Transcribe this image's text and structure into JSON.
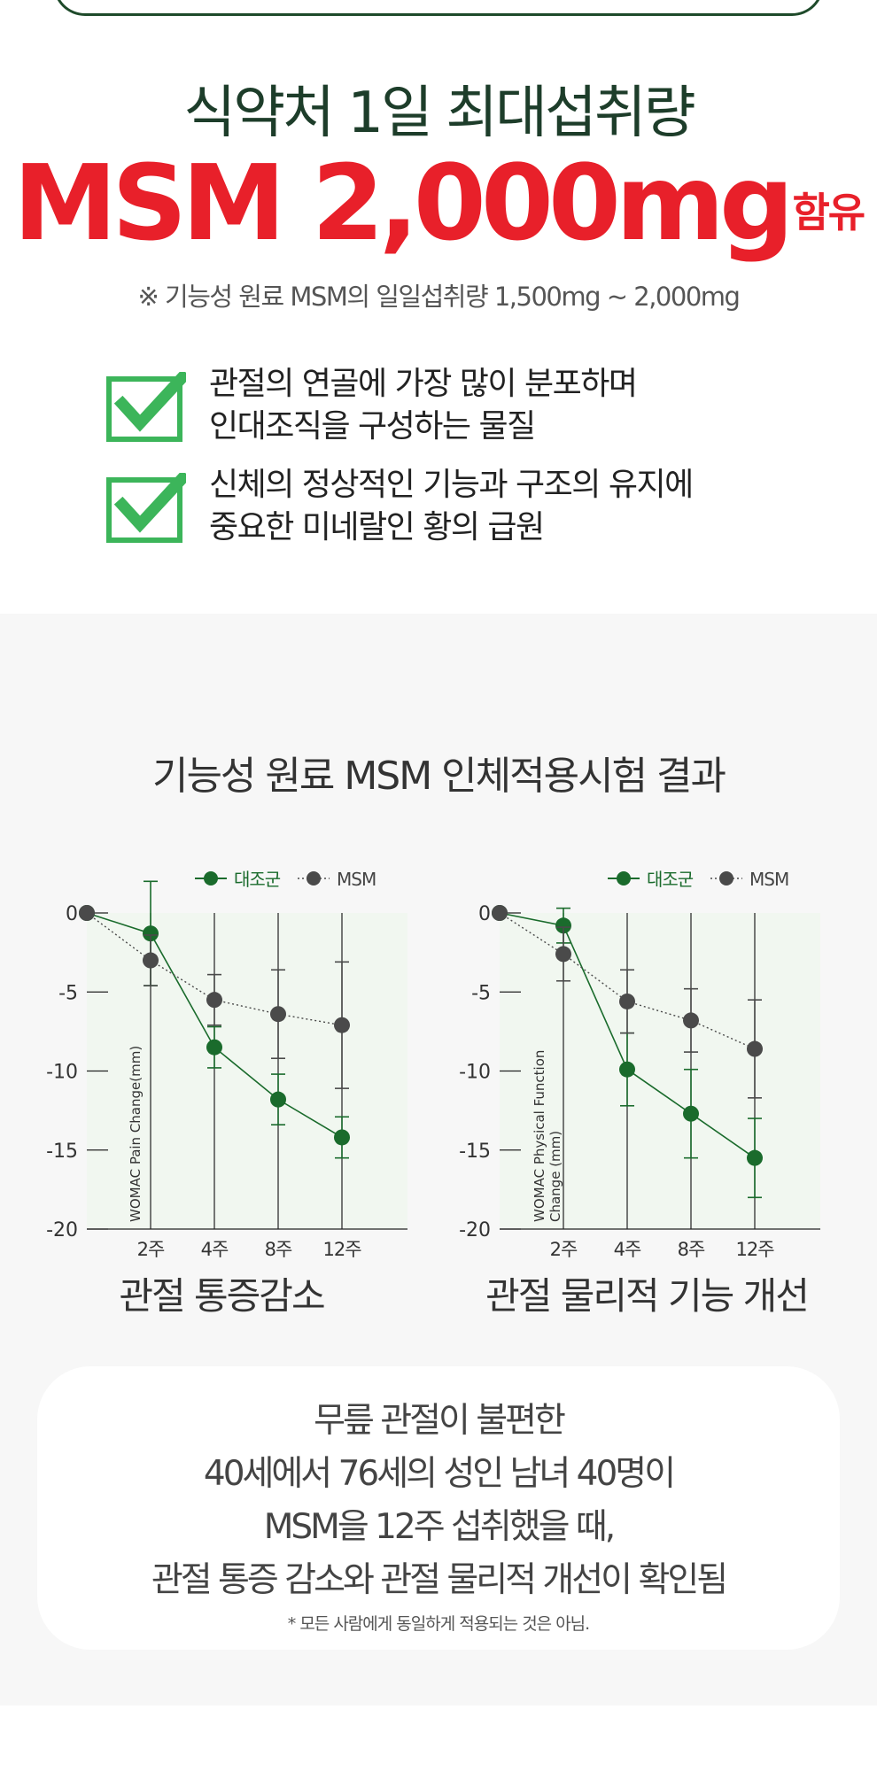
{
  "hero": {
    "subtitle": "식약처 1일 최대섭취량",
    "amount": "MSM 2,000mg",
    "amount_suffix": "함유",
    "note": "※ 기능성 원료 MSM의 일일섭취량 1,500mg ~ 2,000mg"
  },
  "benefits": [
    {
      "line1": "관절의 연골에 가장 많이 분포하며",
      "line2": "인대조직을 구성하는 물질"
    },
    {
      "line1": "신체의 정상적인 기능과 구조의 유지에",
      "line2": "중요한 미네랄인 황의 급원"
    }
  ],
  "section_title": "기능성 원료 MSM 인체적용시험 결과",
  "colors": {
    "control": "#1a6b2c",
    "msm": "#4a4a4a",
    "accent": "#e8202a",
    "check": "#3cb55a"
  },
  "chart_data": [
    {
      "type": "line",
      "title": "관절 통증감소",
      "ylabel": "WOMAC Pain Change(mm)",
      "x": [
        "0",
        "2주",
        "4주",
        "8주",
        "12주"
      ],
      "x_tick_labels": [
        "2주",
        "4주",
        "8주",
        "12주"
      ],
      "ylim": [
        -20,
        0
      ],
      "yticks": [
        0,
        -5,
        -10,
        -15,
        -20
      ],
      "legend": "top-right",
      "series": [
        {
          "name": "대조군",
          "values": [
            0,
            -1.3,
            -8.5,
            -11.8,
            -14.2
          ],
          "err": [
            0,
            3.3,
            1.3,
            1.6,
            1.3
          ]
        },
        {
          "name": "MSM",
          "values": [
            0,
            -3.0,
            -5.5,
            -6.4,
            -7.1
          ],
          "err": [
            0,
            1.6,
            1.6,
            2.8,
            4.0
          ]
        }
      ]
    },
    {
      "type": "line",
      "title": "관절 물리적 기능 개선",
      "ylabel": "WOMAC Physical Function Change (mm)",
      "ylabel_line1": "WOMAC Physical Function",
      "ylabel_line2": "Change (mm)",
      "x": [
        "0",
        "2주",
        "4주",
        "8주",
        "12주"
      ],
      "x_tick_labels": [
        "2주",
        "4주",
        "8주",
        "12주"
      ],
      "ylim": [
        -20,
        0
      ],
      "yticks": [
        0,
        -5,
        -10,
        -15,
        -20
      ],
      "legend": "top-right",
      "series": [
        {
          "name": "대조군",
          "values": [
            0,
            -0.8,
            -9.9,
            -12.7,
            -15.5
          ],
          "err": [
            0,
            1.1,
            2.3,
            2.8,
            2.5
          ]
        },
        {
          "name": "MSM",
          "values": [
            0,
            -2.6,
            -5.6,
            -6.8,
            -8.6
          ],
          "err": [
            0,
            1.7,
            2.0,
            2.0,
            3.1
          ]
        }
      ]
    }
  ],
  "result": {
    "lines": [
      "무릎 관절이 불편한",
      "40세에서 76세의 성인 남녀 40명이",
      "MSM을 12주 섭취했을 때,",
      "관절 통증 감소와 관절 물리적 개선이 확인됨"
    ],
    "footnote": "* 모든 사람에게 동일하게 적용되는 것은 아님."
  }
}
